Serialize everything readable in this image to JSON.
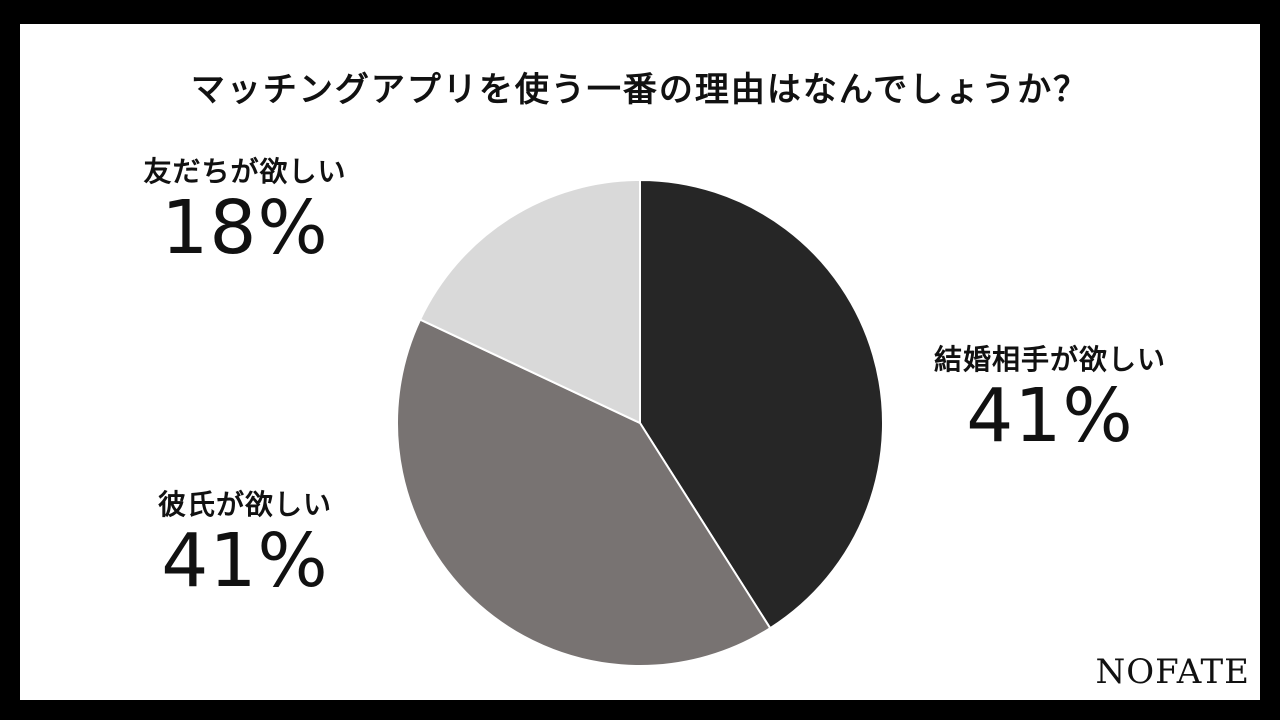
{
  "chart_data": {
    "type": "pie",
    "title": "マッチングアプリを使う一番の理由はなんでしょうか？",
    "slices": [
      {
        "label": "結婚相手が欲しい",
        "value": 41,
        "value_label": "41%",
        "color": "#262626"
      },
      {
        "label": "彼氏が欲しい",
        "value": 41,
        "value_label": "41%",
        "color": "#787372"
      },
      {
        "label": "友だちが欲しい",
        "value": 18,
        "value_label": "18%",
        "color": "#d9d9d9"
      }
    ],
    "start": "12 o'clock",
    "direction": "clockwise"
  },
  "logo": "NOFATE"
}
